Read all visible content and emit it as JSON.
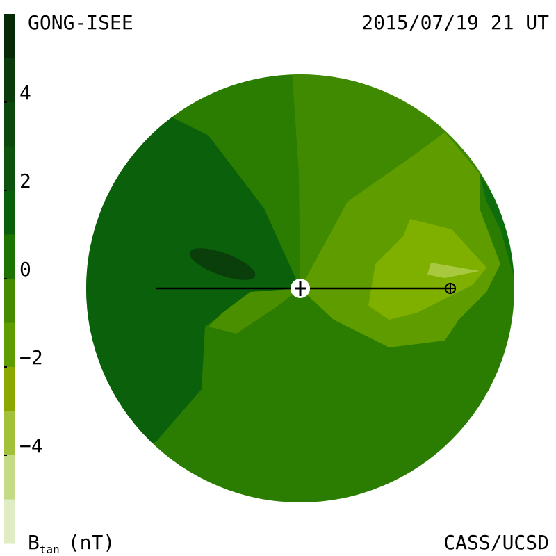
{
  "chart_data": {
    "type": "colorbar",
    "source": "GONG-ISEE",
    "date": "2015/07/19 21 UT",
    "credit": "CASS/UCSD",
    "colorbar_label": {
      "symbol": "B",
      "subscript": "tan",
      "unit": "(nT)"
    },
    "zlim": [
      -6,
      6
    ],
    "zticks": [
      4,
      2,
      0,
      {
        "value": -2,
        "label": "−2"
      },
      {
        "value": -4,
        "label": "−4"
      }
    ],
    "colors": [
      "#062a06",
      "#0b3a0b",
      "#0c470c",
      "#0d530d",
      "#0a600a",
      "#1e7400",
      "#468a00",
      "#5e9c00",
      "#8aa800",
      "#a2c03a",
      "#c4da86",
      "#e0ecc4"
    ]
  }
}
